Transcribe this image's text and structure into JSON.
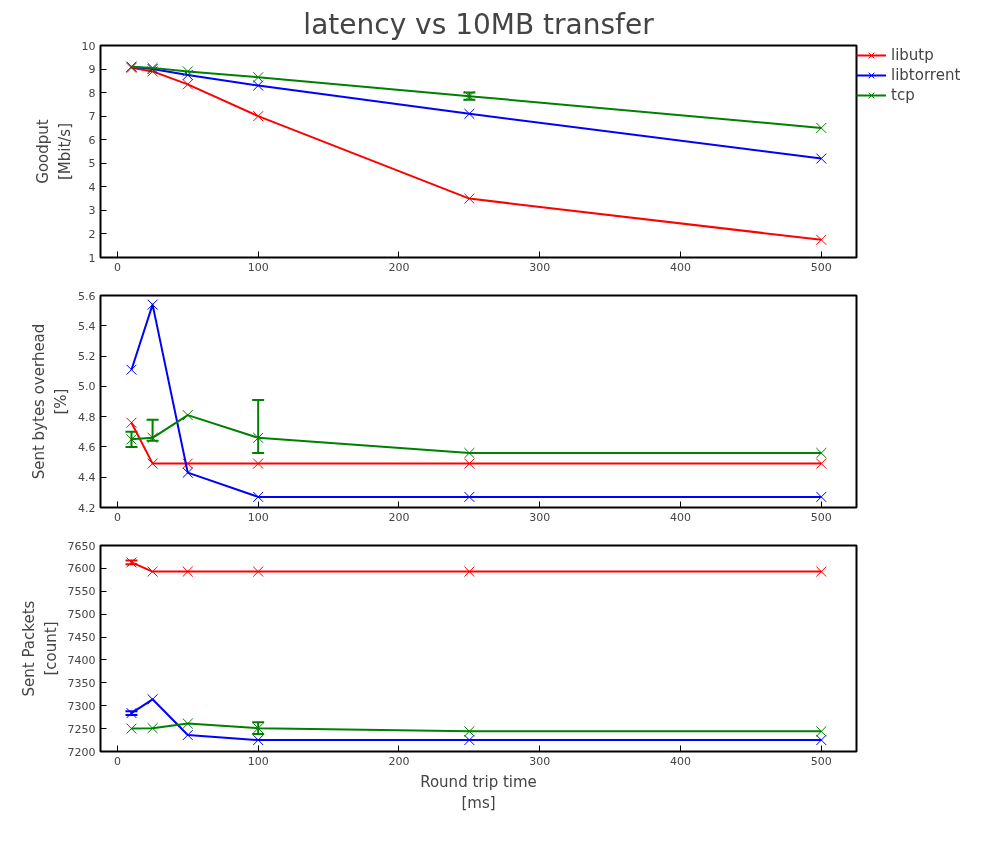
{
  "chart_data": [
    {
      "type": "line",
      "title": "latency vs 10MB transfer",
      "ylabel": "Goodput\n[Mbit/s]",
      "x": [
        10,
        25,
        50,
        100,
        250,
        500
      ],
      "xlim": [
        -12,
        525
      ],
      "xticks": [
        0,
        100,
        200,
        300,
        400,
        500
      ],
      "ylim": [
        1,
        10
      ],
      "yticks": [
        1,
        2,
        3,
        4,
        5,
        6,
        7,
        8,
        9,
        10
      ],
      "marker": "cross",
      "grid": false,
      "legend": "top right",
      "series": [
        {
          "name": "libutp",
          "color": "#ff0000",
          "values": [
            9.05,
            8.9,
            8.35,
            7.0,
            3.5,
            1.75
          ]
        },
        {
          "name": "libtorrent",
          "color": "#0000ff",
          "values": [
            9.1,
            9.0,
            8.75,
            8.3,
            7.1,
            5.2
          ]
        },
        {
          "name": "tcp",
          "color": "#008000",
          "values": [
            9.1,
            9.05,
            8.9,
            8.65,
            7.85,
            6.5
          ],
          "errors": [
            null,
            null,
            null,
            null,
            0.15,
            null
          ]
        }
      ]
    },
    {
      "type": "line",
      "ylabel": "Sent bytes overhead\n[%]",
      "x": [
        10,
        25,
        50,
        100,
        250,
        500
      ],
      "xlim": [
        -12,
        525
      ],
      "xticks": [
        0,
        100,
        200,
        300,
        400,
        500
      ],
      "ylim": [
        4.2,
        5.6
      ],
      "yticks": [
        {
          "value": 4.2,
          "label": "4.2"
        },
        {
          "value": 4.4,
          "label": "4.4"
        },
        {
          "value": 4.6,
          "label": "4.6"
        },
        {
          "value": 4.8,
          "label": "4.8"
        },
        {
          "value": 5.0,
          "label": "5.0"
        },
        {
          "value": 5.2,
          "label": "5.2"
        },
        {
          "value": 5.4,
          "label": "5.4"
        },
        {
          "value": 5.6,
          "label": "5.6"
        }
      ],
      "marker": "cross",
      "grid": false,
      "legend": false,
      "series": [
        {
          "color": "#ff0000",
          "values": [
            4.76,
            4.49,
            4.49,
            4.49,
            4.49,
            4.49
          ]
        },
        {
          "color": "#0000ff",
          "values": [
            5.11,
            5.54,
            4.43,
            4.27,
            4.27,
            4.27
          ]
        },
        {
          "color": "#008000",
          "values": [
            4.65,
            4.66,
            4.81,
            4.66,
            4.56,
            4.56
          ],
          "errors": [
            0.05,
            [
              4.64,
              4.78
            ],
            null,
            [
              4.56,
              4.91
            ],
            null,
            null
          ]
        }
      ]
    },
    {
      "type": "line",
      "ylabel": "Sent Packets\n[count]",
      "xlabel": "Round trip time\n[ms]",
      "x": [
        10,
        25,
        50,
        100,
        250,
        500
      ],
      "xlim": [
        -12,
        525
      ],
      "xticks": [
        0,
        100,
        200,
        300,
        400,
        500
      ],
      "ylim": [
        7200,
        7650
      ],
      "yticks": [
        7200,
        7250,
        7300,
        7350,
        7400,
        7450,
        7500,
        7550,
        7600,
        7650
      ],
      "marker": "cross",
      "grid": false,
      "legend": false,
      "series": [
        {
          "color": "#ff0000",
          "values": [
            7613,
            7593,
            7593,
            7593,
            7593,
            7593
          ],
          "errors": [
            4,
            null,
            null,
            null,
            null,
            null
          ]
        },
        {
          "color": "#0000ff",
          "values": [
            7284,
            7314,
            7236,
            7225,
            7225,
            7225
          ],
          "errors": [
            4,
            null,
            null,
            null,
            null,
            null
          ]
        },
        {
          "color": "#008000",
          "values": [
            7250,
            7251,
            7261,
            7251,
            7244,
            7244
          ],
          "errors": [
            null,
            null,
            null,
            13,
            null,
            null
          ]
        }
      ]
    }
  ]
}
